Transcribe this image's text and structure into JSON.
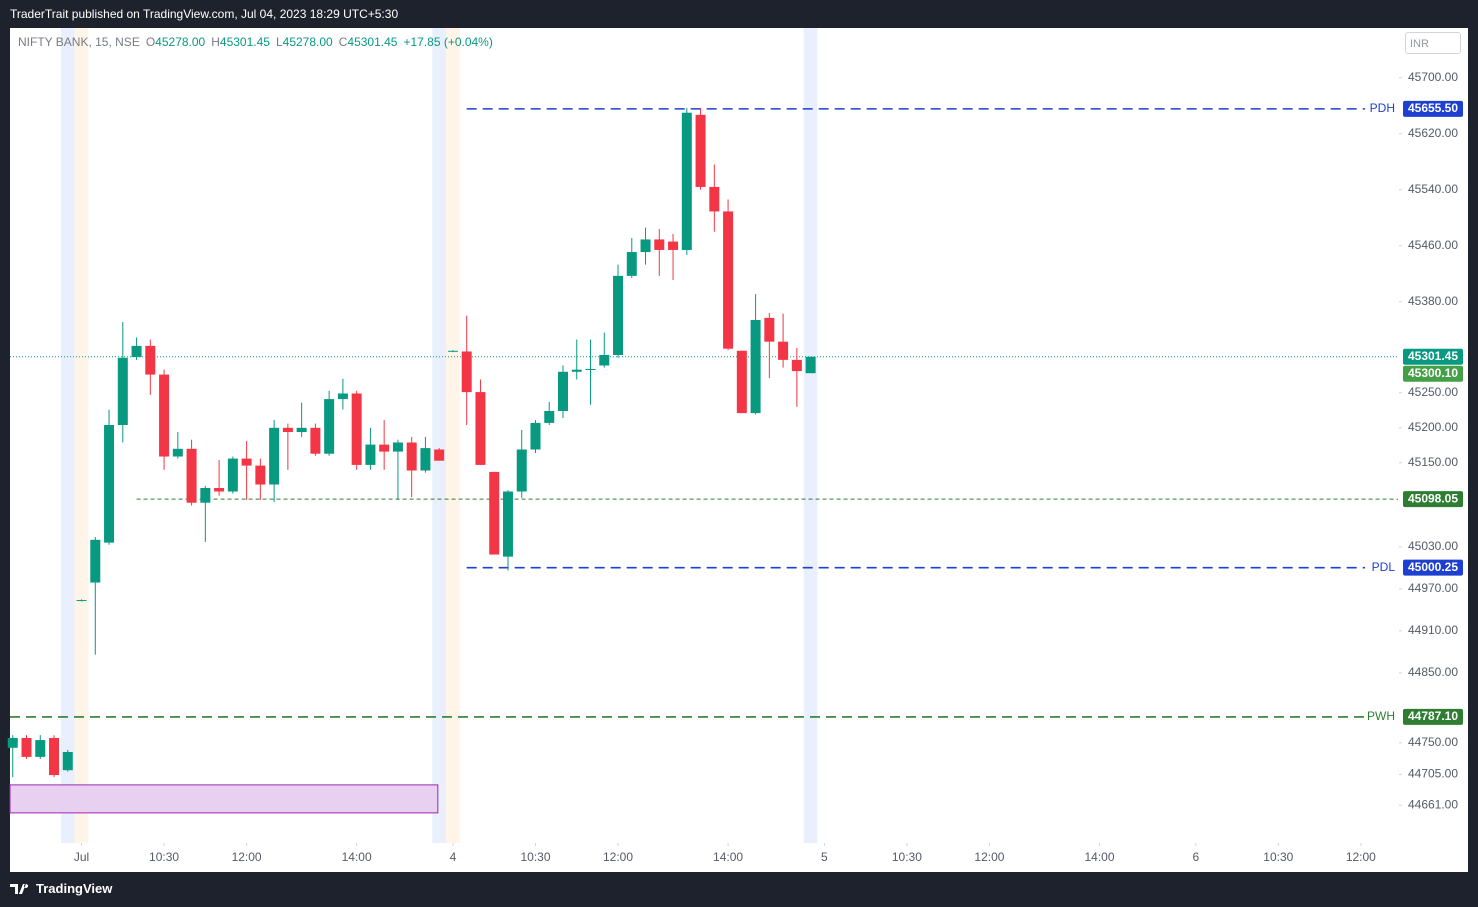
{
  "header": {
    "title": "TraderTrait published on TradingView.com, Jul 04, 2023 18:29 UTC+5:30",
    "brand": "TradingView"
  },
  "chart_data": {
    "type": "candlestick",
    "symbol": "NIFTY BANK, 15, NSE",
    "ohlc_labels": [
      {
        "key": "O",
        "value": "45278.00"
      },
      {
        "key": "H",
        "value": "45301.45"
      },
      {
        "key": "L",
        "value": "45278.00"
      },
      {
        "key": "C",
        "value": "45301.45"
      }
    ],
    "change": "+17.85 (+0.04%)",
    "currency": "INR",
    "up_color": "#089981",
    "down_color": "#f23645",
    "x": [
      0,
      1,
      2,
      3,
      4,
      5,
      6,
      7,
      8,
      9,
      10,
      11,
      12,
      13,
      14,
      15,
      16,
      17,
      18,
      19,
      20,
      21,
      22,
      23,
      24,
      25,
      26,
      27,
      28,
      29,
      30,
      31,
      32,
      33,
      34,
      35,
      36,
      37,
      38,
      39,
      40,
      41,
      42,
      43,
      44,
      45,
      46,
      47,
      48,
      49,
      50,
      51,
      52,
      53,
      54,
      55,
      56,
      57,
      58
    ],
    "open": [
      44743,
      44757,
      44730,
      44757,
      44711,
      44953,
      44979,
      45036,
      45204,
      45301,
      45317,
      45276,
      45159,
      45170,
      45093,
      45114,
      45109,
      45156,
      45146,
      45119,
      45200,
      45194,
      45200,
      45163,
      45241,
      45249,
      45147,
      45176,
      45166,
      45179,
      45139,
      45169,
      45309,
      45309,
      45251,
      45137,
      45016,
      45109,
      45169,
      45207,
      45224,
      45280,
      45283,
      45289,
      45304,
      45417,
      45451,
      45469,
      45466,
      45454,
      45647,
      45544,
      45509,
      45310,
      45221,
      45357,
      45323,
      45297,
      45278
    ],
    "high": [
      44761,
      44761,
      44761,
      44761,
      44740,
      44955,
      45044,
      45226,
      45351,
      45329,
      45326,
      45283,
      45194,
      45183,
      45117,
      45154,
      45159,
      45181,
      45156,
      45211,
      45206,
      45236,
      45206,
      45253,
      45270,
      45253,
      45200,
      45211,
      45183,
      45187,
      45187,
      45171,
      45311,
      45360,
      45269,
      45137,
      45111,
      45197,
      45211,
      45237,
      45289,
      45326,
      45326,
      45336,
      45433,
      45471,
      45486,
      45484,
      45477,
      45657,
      45657,
      45576,
      45526,
      45310,
      45391,
      45364,
      45363,
      45314,
      45301.45
    ],
    "low": [
      44701,
      44727,
      44727,
      44701,
      44709,
      44952,
      44876,
      45033,
      45179,
      45297,
      45247,
      45140,
      45156,
      45089,
      45037,
      45103,
      45106,
      45097,
      45097,
      45094,
      45140,
      45187,
      45160,
      45160,
      45226,
      45140,
      45140,
      45140,
      45097,
      45101,
      45136,
      45153,
      45308,
      45204,
      45147,
      45019,
      44996,
      45100,
      45164,
      45204,
      45214,
      45269,
      45233,
      45286,
      45300,
      45414,
      45433,
      45417,
      45411,
      45447,
      45540,
      45480,
      45311,
      45221,
      45219,
      45271,
      45286,
      45230,
      45278
    ],
    "close": [
      44757,
      44730,
      44754,
      44704,
      44737,
      44954,
      45040,
      45204,
      45300,
      45317,
      45276,
      45159,
      45170,
      45093,
      45114,
      45109,
      45156,
      45146,
      45119,
      45200,
      45194,
      45200,
      45163,
      45241,
      45249,
      45147,
      45176,
      45166,
      45179,
      45139,
      45171,
      45153,
      45310,
      45251,
      45147,
      45019,
      45109,
      45169,
      45207,
      45224,
      45280,
      45283,
      45284,
      45304,
      45417,
      45451,
      45469,
      45454,
      45454,
      45650,
      45544,
      45509,
      45313,
      45221,
      45354,
      45323,
      45297,
      45281,
      45301.45
    ],
    "xlim": [
      -0.2,
      100.7
    ],
    "ylim": [
      44607,
      45771
    ],
    "xticks": [
      {
        "value": 5,
        "label": "Jul"
      },
      {
        "value": 11,
        "label": "10:30"
      },
      {
        "value": 17,
        "label": "12:00"
      },
      {
        "value": 25,
        "label": "14:00"
      },
      {
        "value": 32,
        "label": "4"
      },
      {
        "value": 38,
        "label": "10:30"
      },
      {
        "value": 44,
        "label": "12:00"
      },
      {
        "value": 52,
        "label": "14:00"
      },
      {
        "value": 59,
        "label": "5"
      },
      {
        "value": 65,
        "label": "10:30"
      },
      {
        "value": 71,
        "label": "12:00"
      },
      {
        "value": 79,
        "label": "14:00"
      },
      {
        "value": 86,
        "label": "6"
      },
      {
        "value": 92,
        "label": "10:30"
      },
      {
        "value": 98,
        "label": "12:00"
      }
    ],
    "yticks": [
      {
        "value": 45700,
        "label": "45700.00"
      },
      {
        "value": 45620,
        "label": "45620.00"
      },
      {
        "value": 45540,
        "label": "45540.00"
      },
      {
        "value": 45460,
        "label": "45460.00"
      },
      {
        "value": 45380,
        "label": "45380.00"
      },
      {
        "value": 45250,
        "label": "45250.00"
      },
      {
        "value": 45200,
        "label": "45200.00"
      },
      {
        "value": 45150,
        "label": "45150.00"
      },
      {
        "value": 45030,
        "label": "45030.00"
      },
      {
        "value": 44970,
        "label": "44970.00"
      },
      {
        "value": 44910,
        "label": "44910.00"
      },
      {
        "value": 44850,
        "label": "44850.00"
      },
      {
        "value": 44750,
        "label": "44750.00"
      },
      {
        "value": 44705,
        "label": "44705.00"
      },
      {
        "value": 44661,
        "label": "44661.00"
      }
    ],
    "levels": [
      {
        "name": "PDH",
        "value": 45655.5,
        "label": "45655.50",
        "color": "#1e40d0",
        "style": "dashed"
      },
      {
        "value": 45301.45,
        "label": "45301.45",
        "color": "#089981",
        "style": "dotted"
      },
      {
        "value": 45300.1,
        "label": "45300.10",
        "color": "#43a047",
        "style": "none"
      },
      {
        "value": 45098.05,
        "label": "45098.05",
        "color": "#2e7d32",
        "style": "thin"
      },
      {
        "name": "PDL",
        "value": 45000.25,
        "label": "45000.25",
        "color": "#1e40d0",
        "style": "dashed"
      },
      {
        "name": "PWH",
        "value": 44787.1,
        "label": "44787.10",
        "color": "#2e7d32",
        "style": "dashed"
      }
    ],
    "zone": {
      "low": 44650,
      "high": 44690,
      "color": "#e8d1f0",
      "border": "#9c27b0"
    }
  }
}
